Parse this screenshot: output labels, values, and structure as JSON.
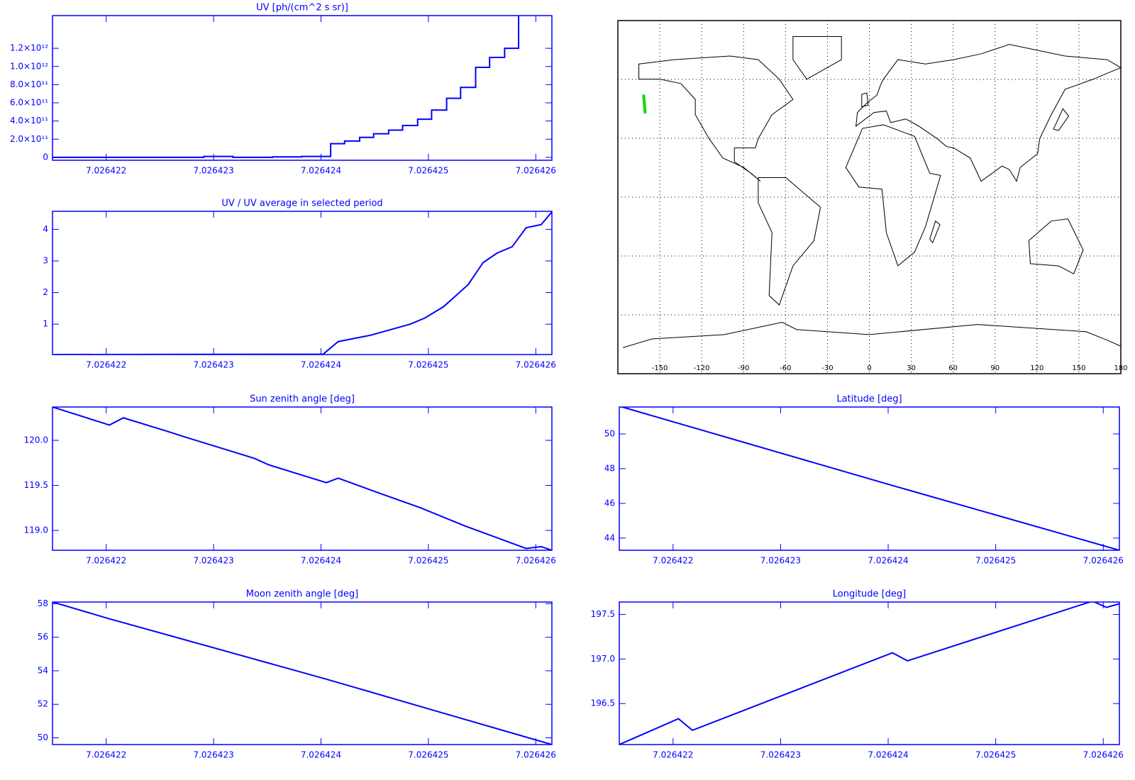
{
  "chart_data": [
    {
      "type": "step",
      "title": "UV [ph/(cm^2 s sr)]",
      "color": "#0000ff",
      "x": [
        7.0264215,
        7.02642291,
        7.02642318,
        7.02642355,
        7.02642382,
        7.02642409,
        7.02642422,
        7.02642436,
        7.02642449,
        7.02642463,
        7.02642476,
        7.0264249,
        7.02642503,
        7.02642517,
        7.0264253,
        7.02642544,
        7.02642557,
        7.02642571,
        7.02642584
      ],
      "values": [
        0,
        10000000000,
        0,
        5000000000,
        10000000000,
        150000000000,
        180000000000,
        220000000000,
        260000000000,
        300000000000,
        350000000000,
        420000000000,
        520000000000,
        650000000000,
        770000000000,
        990000000000,
        1100000000000,
        1200000000000,
        1600000000000
      ],
      "xlim": [
        7.0264215,
        7.02642615
      ],
      "xticks": [
        7.026422,
        7.026423,
        7.026424,
        7.026425,
        7.026426
      ],
      "ylim": [
        -32000000000,
        1560000000000
      ],
      "yticks": [
        0,
        {
          "value": 200000000000,
          "label": "2.0×10¹¹"
        },
        {
          "value": 400000000000,
          "label": "4.0×10¹¹"
        },
        {
          "value": 600000000000,
          "label": "6.0×10¹¹"
        },
        {
          "value": 800000000000,
          "label": "8.0×10¹¹"
        },
        {
          "value": 1000000000000,
          "label": "1.0×10¹²"
        },
        {
          "value": 1200000000000,
          "label": "1.2×10¹²"
        }
      ]
    },
    {
      "type": "line",
      "title": "UV / UV average in selected period",
      "color": "#0000ff",
      "x": [
        7.0264215,
        7.02642402,
        7.02642416,
        7.02642446,
        7.02642483,
        7.02642497,
        7.02642514,
        7.02642537,
        7.02642551,
        7.02642564,
        7.02642578,
        7.02642591,
        7.02642605,
        7.02642615
      ],
      "values": [
        0.04,
        0.05,
        0.45,
        0.65,
        1.0,
        1.2,
        1.55,
        2.25,
        2.95,
        3.25,
        3.45,
        4.05,
        4.15,
        4.55
      ],
      "xlim": [
        7.0264215,
        7.02642615
      ],
      "xticks": [
        7.026422,
        7.026423,
        7.026424,
        7.026425,
        7.026426
      ],
      "ylim": [
        0.04,
        4.57
      ],
      "yticks": [
        1,
        2,
        3,
        4
      ]
    },
    {
      "type": "line",
      "title": "Sun zenith angle [deg]",
      "color": "#0000ff",
      "x": [
        7.0264215,
        7.02642203,
        7.02642216,
        7.02642257,
        7.0264227,
        7.02642338,
        7.02642351,
        7.02642405,
        7.02642416,
        7.02642446,
        7.02642493,
        7.02642534,
        7.02642591,
        7.02642605,
        7.02642615
      ],
      "values": [
        120.37,
        120.17,
        120.25,
        120.1,
        120.05,
        119.8,
        119.73,
        119.53,
        119.58,
        119.45,
        119.25,
        119.05,
        118.8,
        118.82,
        118.78
      ],
      "xlim": [
        7.0264215,
        7.02642615
      ],
      "xticks": [
        7.026422,
        7.026423,
        7.026424,
        7.026425,
        7.026426
      ],
      "ylim": [
        118.78,
        120.37
      ],
      "yticks": [
        {
          "value": 119,
          "label": "119.0"
        },
        {
          "value": 119.5,
          "label": "119.5"
        },
        {
          "value": 120,
          "label": "120.0"
        }
      ]
    },
    {
      "type": "line",
      "title": "Latitude [deg]",
      "color": "#0000ff",
      "x": [
        7.0264215,
        7.026424,
        7.02642615
      ],
      "values": [
        51.6,
        47.1,
        43.3
      ],
      "xlim": [
        7.0264215,
        7.02642615
      ],
      "xticks": [
        7.026422,
        7.026423,
        7.026424,
        7.026425,
        7.026426
      ],
      "ylim": [
        43.3,
        51.55
      ],
      "yticks": [
        44,
        46,
        48,
        50
      ]
    },
    {
      "type": "line",
      "title": "Moon zenith angle [deg]",
      "color": "#0000ff",
      "x": [
        7.0264215,
        7.02642203,
        7.02642304,
        7.02642405,
        7.02642507,
        7.02642615
      ],
      "values": [
        58.1,
        57.1,
        55.3,
        53.5,
        51.6,
        49.6
      ],
      "xlim": [
        7.0264215,
        7.02642615
      ],
      "xticks": [
        7.026422,
        7.026423,
        7.026424,
        7.026425,
        7.026426
      ],
      "ylim": [
        49.6,
        58.1
      ],
      "yticks": [
        50,
        52,
        54,
        56,
        58
      ]
    },
    {
      "type": "line",
      "title": "Longitude [deg]",
      "color": "#0000ff",
      "x": [
        7.0264215,
        7.02642205,
        7.02642218,
        7.02642404,
        7.02642418,
        7.0264259,
        7.02642603,
        7.02642615
      ],
      "values": [
        196.04,
        196.33,
        196.2,
        197.07,
        196.98,
        197.65,
        197.58,
        197.62
      ],
      "xlim": [
        7.0264215,
        7.02642615
      ],
      "xticks": [
        7.026422,
        7.026423,
        7.026424,
        7.026425,
        7.026426
      ],
      "ylim": [
        196.04,
        197.64
      ],
      "yticks": [
        {
          "value": 196.5,
          "label": "196.5"
        },
        {
          "value": 197,
          "label": "197.0"
        },
        {
          "value": 197.5,
          "label": "197.5"
        }
      ]
    },
    {
      "type": "map",
      "xlim": [
        -180,
        180
      ],
      "ylim": [
        -90,
        90
      ],
      "xticks": [
        -150,
        -120,
        -90,
        -60,
        -30,
        0,
        30,
        60,
        90,
        120,
        150,
        180
      ],
      "ygrid": [
        -60,
        -30,
        0,
        30,
        60
      ],
      "track": {
        "color": "#00dd00",
        "x": [
          -161.5,
          -160.5
        ],
        "values": [
          51.6,
          43.3
        ]
      }
    }
  ]
}
